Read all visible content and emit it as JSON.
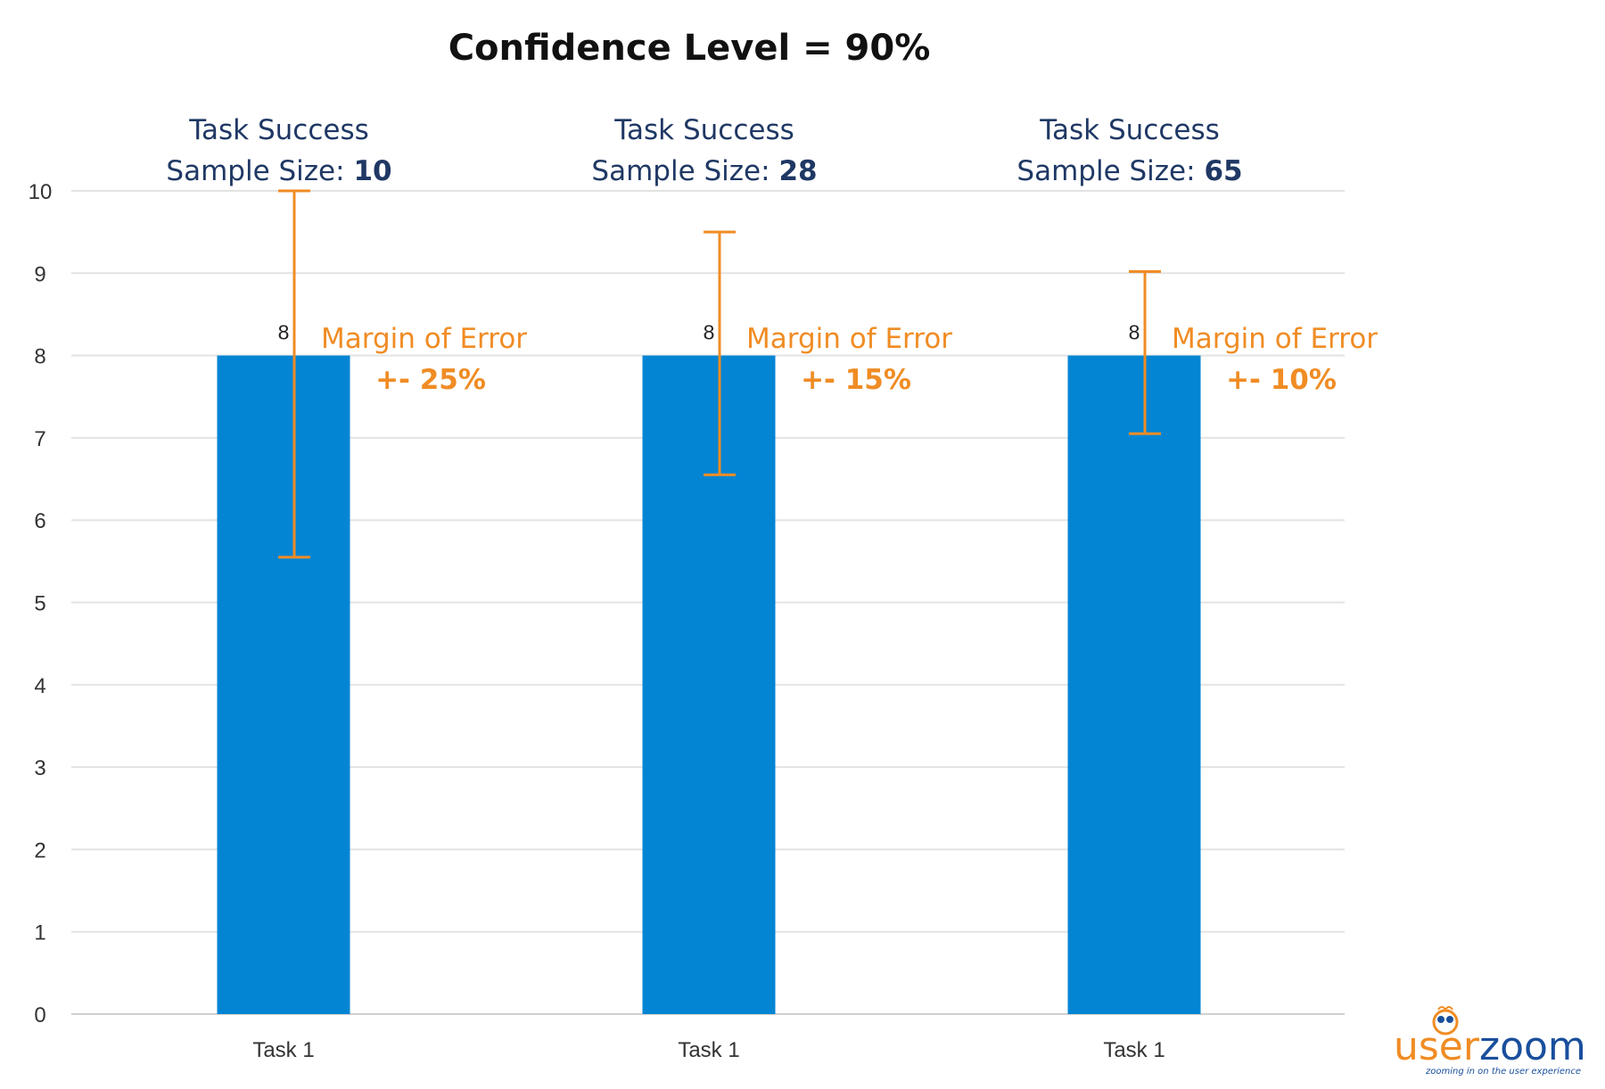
{
  "chart_data": {
    "type": "bar",
    "title": "Confidence Level = 90%",
    "categories": [
      "Task 1",
      "Task 1",
      "Task 1"
    ],
    "values": [
      8,
      8,
      8
    ],
    "data_labels": [
      "8",
      "8",
      "8"
    ],
    "error_bars": [
      {
        "low": 5.55,
        "high": 10
      },
      {
        "low": 6.55,
        "high": 9.5
      },
      {
        "low": 7.05,
        "high": 9.02
      }
    ],
    "group_headers": [
      {
        "line1": "Task Success",
        "sample_label": "Sample Size: ",
        "sample_size": "10"
      },
      {
        "line1": "Task Success",
        "sample_label": "Sample Size: ",
        "sample_size": "28"
      },
      {
        "line1": "Task Success",
        "sample_label": "Sample Size: ",
        "sample_size": "65"
      }
    ],
    "annotations": [
      {
        "line1": "Margin of Error",
        "line2": "+- 25%"
      },
      {
        "line1": "Margin of Error",
        "line2": "+- 15%"
      },
      {
        "line1": "Margin of Error",
        "line2": "+- 10%"
      }
    ],
    "ylim": [
      0,
      10
    ],
    "yticks": [
      0,
      1,
      2,
      3,
      4,
      5,
      6,
      7,
      8,
      9,
      10
    ],
    "xlabel": "",
    "ylabel": "",
    "grid": true,
    "legend": "none",
    "colors": {
      "bar": "#0385d4",
      "error": "#f08c24",
      "header": "#1f3864"
    }
  },
  "logo": {
    "part1": "user",
    "part2": "zoom",
    "tagline": "zooming in on the user experience"
  }
}
